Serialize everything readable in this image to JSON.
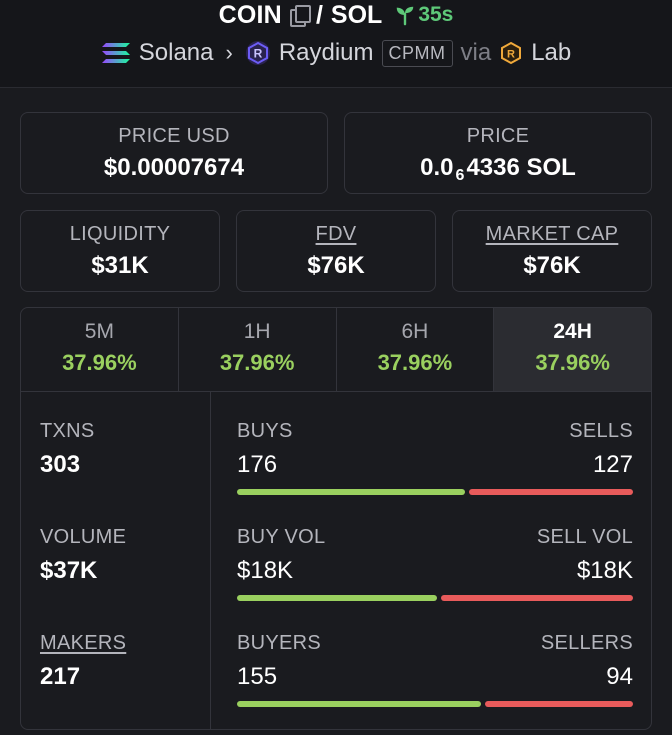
{
  "header": {
    "base_token": "COIN",
    "slash": "/",
    "quote_token": "SOL",
    "age": "35s",
    "chain": "Solana",
    "dex": "Raydium",
    "pool_type": "CPMM",
    "via": "via",
    "launchpad": "Lab"
  },
  "cards": {
    "price_usd": {
      "label": "PRICE USD",
      "value": "$0.00007674"
    },
    "price": {
      "label": "PRICE",
      "value_prefix": "0.0",
      "value_sub": "6",
      "value_suffix": "4336 SOL"
    },
    "liquidity": {
      "label": "LIQUIDITY",
      "value": "$31K"
    },
    "fdv": {
      "label": "FDV",
      "value": "$76K"
    },
    "market_cap": {
      "label": "MARKET CAP",
      "value": "$76K"
    }
  },
  "tabs": [
    {
      "label": "5M",
      "change": "37.96%"
    },
    {
      "label": "1H",
      "change": "37.96%"
    },
    {
      "label": "6H",
      "change": "37.96%"
    },
    {
      "label": "24H",
      "change": "37.96%"
    }
  ],
  "active_tab": "24H",
  "stats": {
    "txns": {
      "label": "TXNS",
      "value": "303"
    },
    "volume": {
      "label": "VOLUME",
      "value": "$37K"
    },
    "makers": {
      "label": "MAKERS",
      "value": "217"
    },
    "buys_sells": {
      "left_label": "BUYS",
      "right_label": "SELLS",
      "left_value": "176",
      "right_value": "127",
      "left_share": 0.58
    },
    "vol_split": {
      "left_label": "BUY VOL",
      "right_label": "SELL VOL",
      "left_value": "$18K",
      "right_value": "$18K",
      "left_share": 0.51
    },
    "buyers_sellers": {
      "left_label": "BUYERS",
      "right_label": "SELLERS",
      "left_value": "155",
      "right_value": "94",
      "left_share": 0.62
    }
  },
  "colors": {
    "positive": "#9ad05f",
    "negative": "#e85b5b",
    "age": "#5ec979"
  }
}
